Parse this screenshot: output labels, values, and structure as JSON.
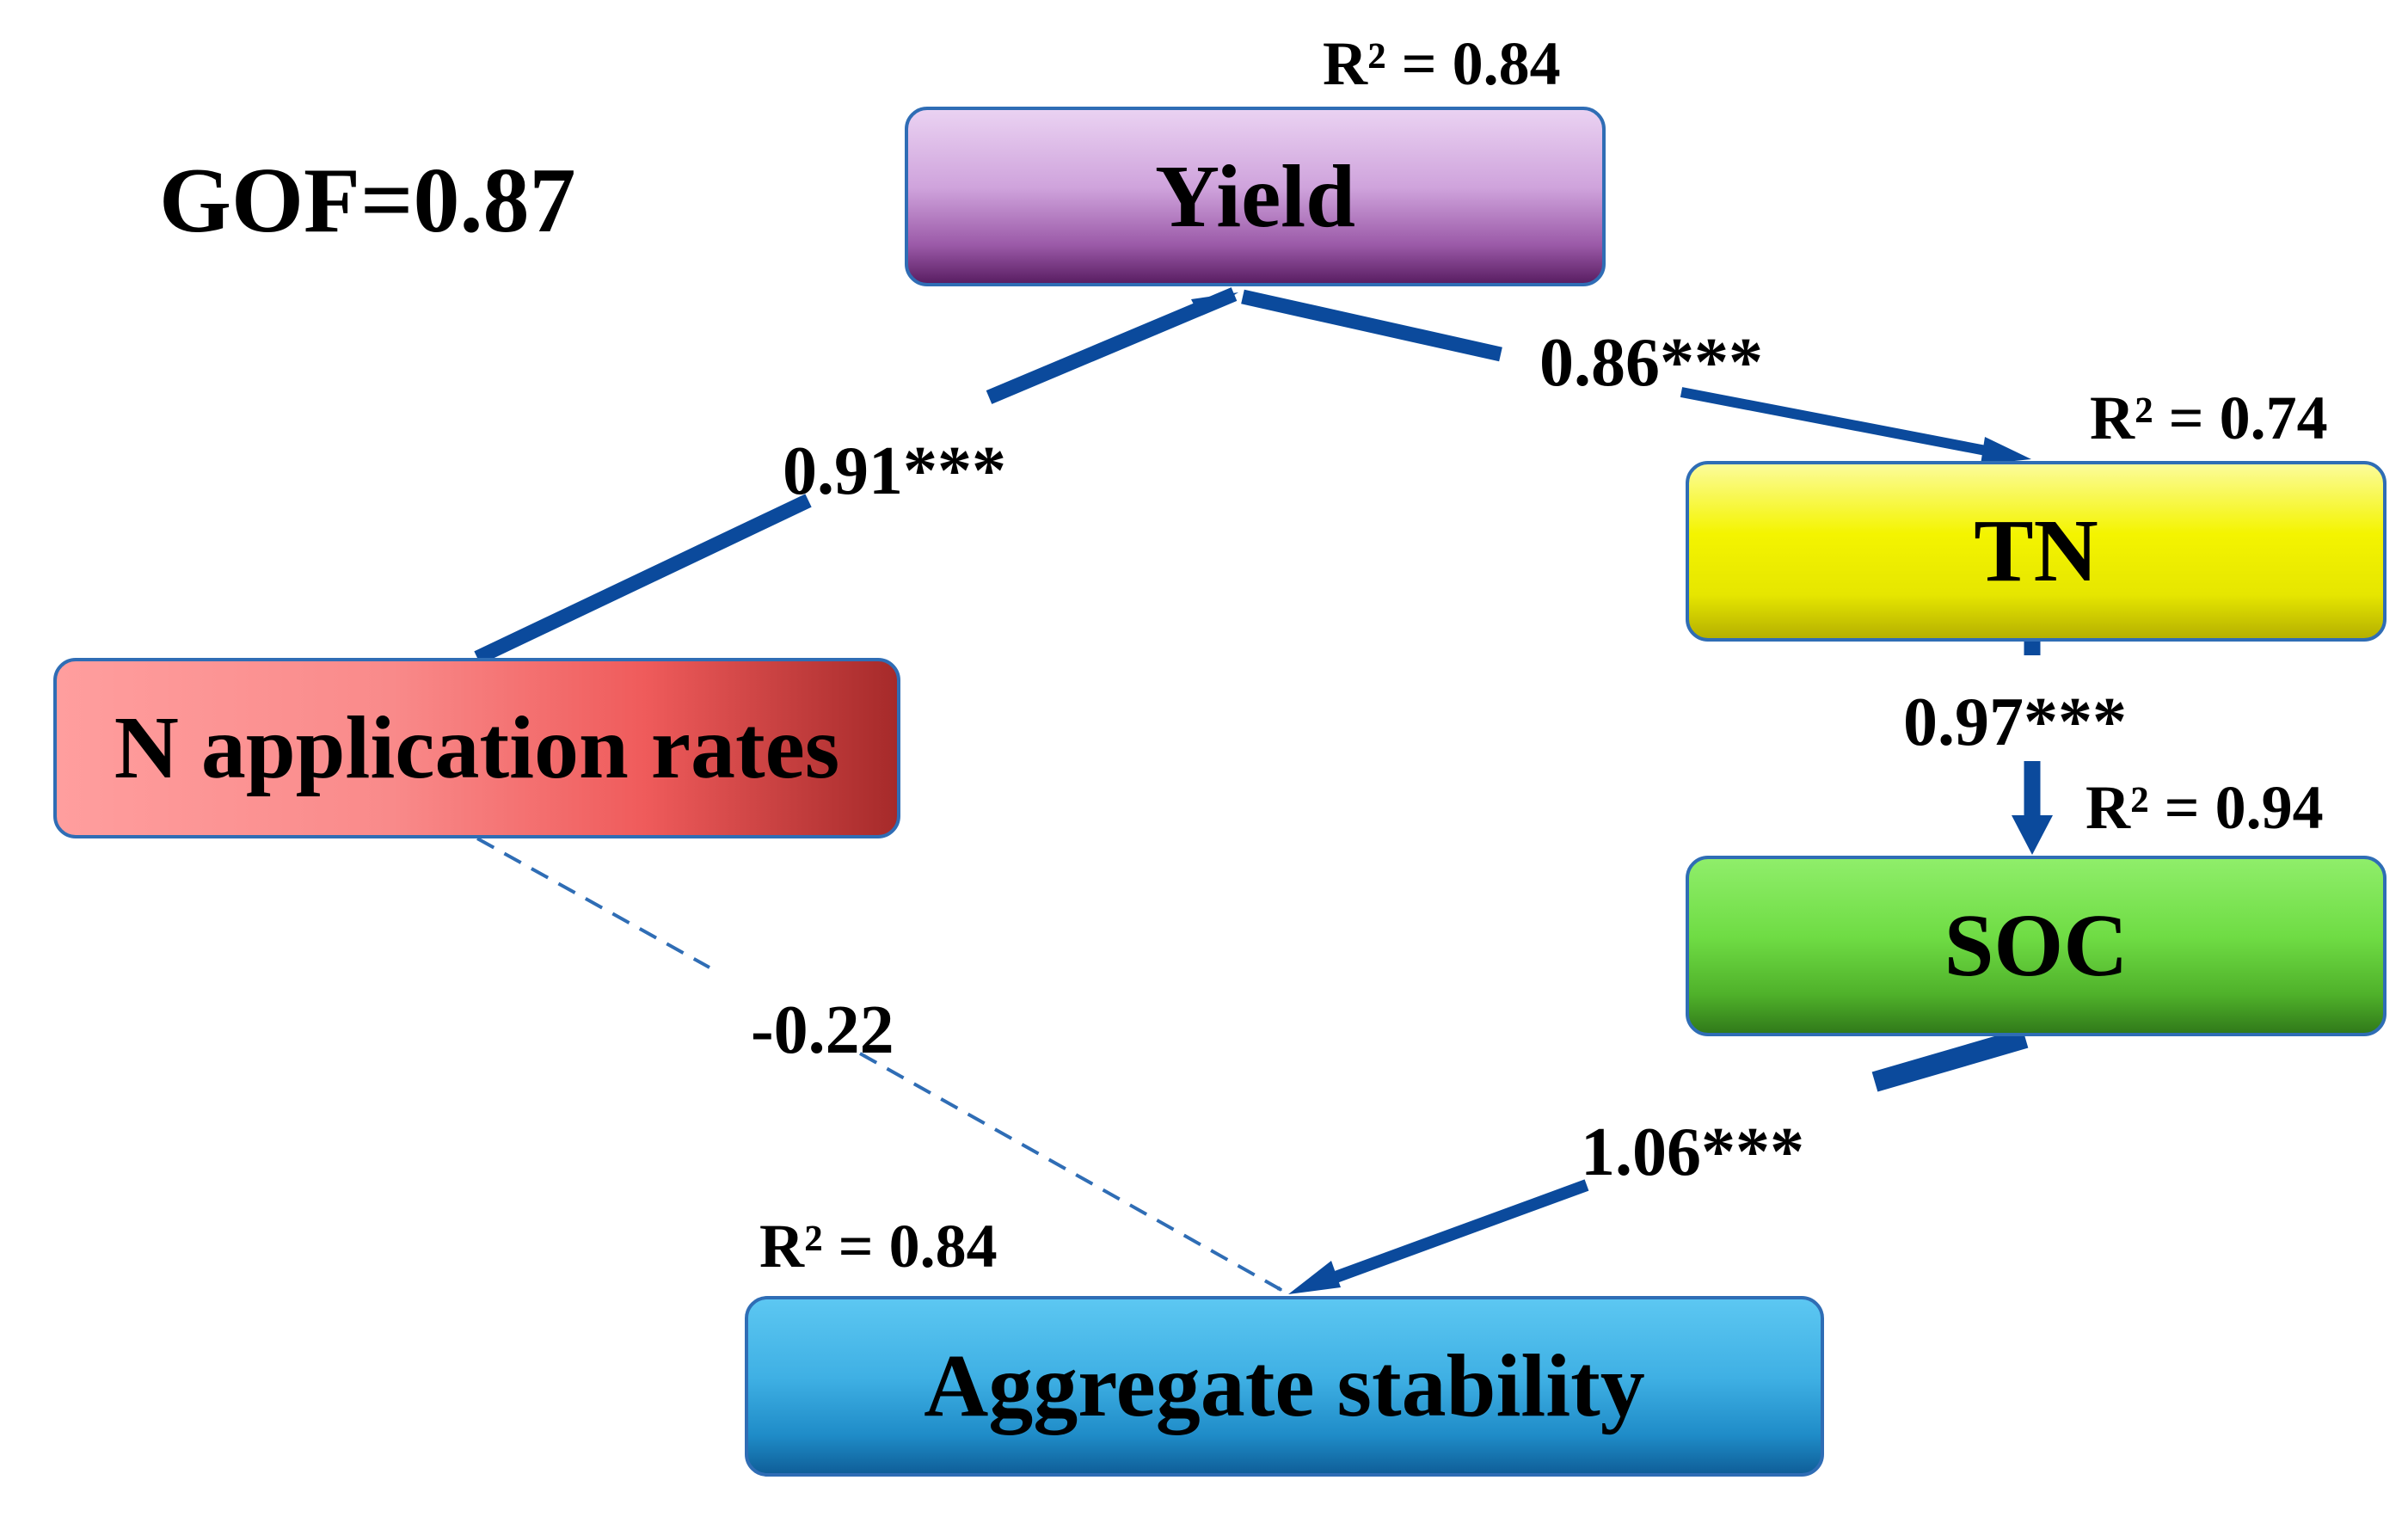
{
  "gof": "GOF=0.87",
  "colors": {
    "arrow": "#0b4a9c",
    "dashed_arrow": "#2f6db5",
    "yield": "#b27dc0",
    "tn": "#eeee00",
    "soc": "#5cc535",
    "n_application": "#f47c7c",
    "aggregate": "#33a6dc"
  },
  "nodes": {
    "yield": {
      "label": "Yield",
      "r2": "R² = 0.84"
    },
    "tn": {
      "label": "TN",
      "r2": "R² = 0.74"
    },
    "soc": {
      "label": "SOC",
      "r2": "R² = 0.94"
    },
    "n_application": {
      "label": "N application rates"
    },
    "aggregate": {
      "label": "Aggregate stability",
      "r2": "R² = 0.84"
    }
  },
  "paths": {
    "n_to_yield": {
      "coef": "0.91***",
      "style": "solid"
    },
    "yield_to_tn": {
      "coef": "0.86***",
      "style": "solid"
    },
    "tn_to_soc": {
      "coef": "0.97***",
      "style": "solid"
    },
    "soc_to_aggregate": {
      "coef": "1.06***",
      "style": "solid"
    },
    "n_to_aggregate": {
      "coef": "-0.22",
      "style": "dashed"
    }
  }
}
